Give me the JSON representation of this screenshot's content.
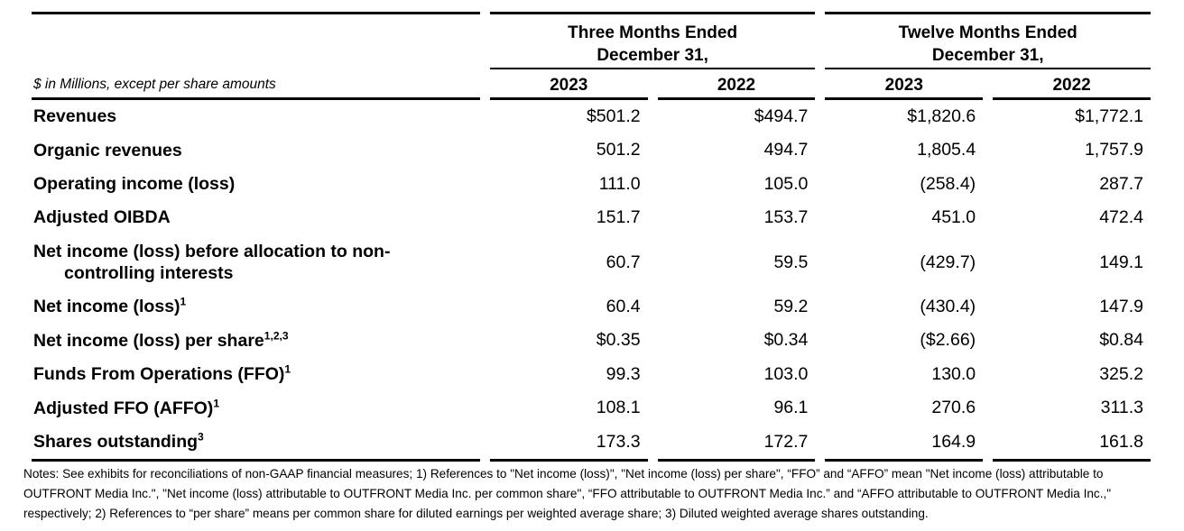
{
  "table": {
    "unit_note": "$ in Millions, except per share amounts",
    "col_groups": [
      {
        "line1": "Three Months Ended",
        "line2": "December 31,",
        "years": [
          "2023",
          "2022"
        ]
      },
      {
        "line1": "Twelve Months Ended",
        "line2": "December 31,",
        "years": [
          "2023",
          "2022"
        ]
      }
    ],
    "rows": [
      {
        "label": "Revenues",
        "sup": "",
        "label2": "",
        "values": [
          "$501.2",
          "$494.7",
          "$1,820.6",
          "$1,772.1"
        ]
      },
      {
        "label": "Organic revenues",
        "sup": "",
        "label2": "",
        "values": [
          "501.2",
          "494.7",
          "1,805.4",
          "1,757.9"
        ]
      },
      {
        "label": "Operating income (loss)",
        "sup": "",
        "label2": "",
        "values": [
          "111.0",
          "105.0",
          "(258.4)",
          "287.7"
        ]
      },
      {
        "label": "Adjusted OIBDA",
        "sup": "",
        "label2": "",
        "values": [
          "151.7",
          "153.7",
          "451.0",
          "472.4"
        ]
      },
      {
        "label": "Net income (loss) before allocation to non-",
        "sup": "",
        "label2": "controlling interests",
        "values": [
          "60.7",
          "59.5",
          "(429.7)",
          "149.1"
        ]
      },
      {
        "label": "Net income (loss)",
        "sup": "1",
        "label2": "",
        "values": [
          "60.4",
          "59.2",
          "(430.4)",
          "147.9"
        ]
      },
      {
        "label": "Net income (loss) per share",
        "sup": "1,2,3",
        "label2": "",
        "values": [
          "$0.35",
          "$0.34",
          "($2.66)",
          "$0.84"
        ]
      },
      {
        "label": "Funds From Operations (FFO)",
        "sup": "1",
        "label2": "",
        "values": [
          "99.3",
          "103.0",
          "130.0",
          "325.2"
        ]
      },
      {
        "label": "Adjusted FFO (AFFO)",
        "sup": "1",
        "label2": "",
        "values": [
          "108.1",
          "96.1",
          "270.6",
          "311.3"
        ]
      },
      {
        "label": "Shares outstanding",
        "sup": "3",
        "label2": "",
        "values": [
          "173.3",
          "172.7",
          "164.9",
          "161.8"
        ]
      }
    ]
  },
  "notes": "Notes: See exhibits for reconciliations of non-GAAP financial measures; 1) References to \"Net income (loss)\", \"Net income (loss) per share\", “FFO” and “AFFO” mean \"Net income (loss) attributable to OUTFRONT Media Inc.\", \"Net income (loss) attributable to OUTFRONT Media Inc. per common share\", “FFO attributable to OUTFRONT Media Inc.” and “AFFO attributable to OUTFRONT Media Inc.,\" respectively; 2) References to “per share” means per common share for diluted earnings per weighted average share; 3) Diluted weighted average shares outstanding."
}
